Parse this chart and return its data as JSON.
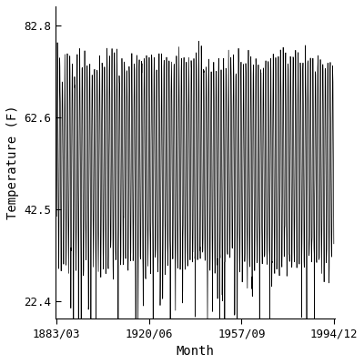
{
  "title": "",
  "xlabel": "Month",
  "ylabel": "Temperature (F)",
  "xlim_start_year": 1883,
  "xlim_start_month": 3,
  "xlim_end_year": 1994,
  "xlim_end_month": 12,
  "ylim": [
    18.5,
    87.0
  ],
  "yticks": [
    22.4,
    42.5,
    62.6,
    82.8
  ],
  "xtick_labels": [
    "1883/03",
    "1920/06",
    "1957/09",
    "1994/12"
  ],
  "xtick_positions_months": [
    {
      "year": 1883,
      "month": 3
    },
    {
      "year": 1920,
      "month": 6
    },
    {
      "year": 1957,
      "month": 9
    },
    {
      "year": 1994,
      "month": 12
    }
  ],
  "line_color": "#000000",
  "line_width": 0.5,
  "bg_color": "#ffffff",
  "seasonal_mean": 52.6,
  "seasonal_amplitude": 22.5,
  "noise_std": 2.0,
  "start_year": 1883,
  "start_month": 3,
  "end_year": 1995,
  "end_month": 1,
  "font_family": "monospace",
  "tick_fontsize": 9,
  "label_fontsize": 10,
  "fig_width": 4.0,
  "fig_height": 4.0,
  "dpi": 100
}
